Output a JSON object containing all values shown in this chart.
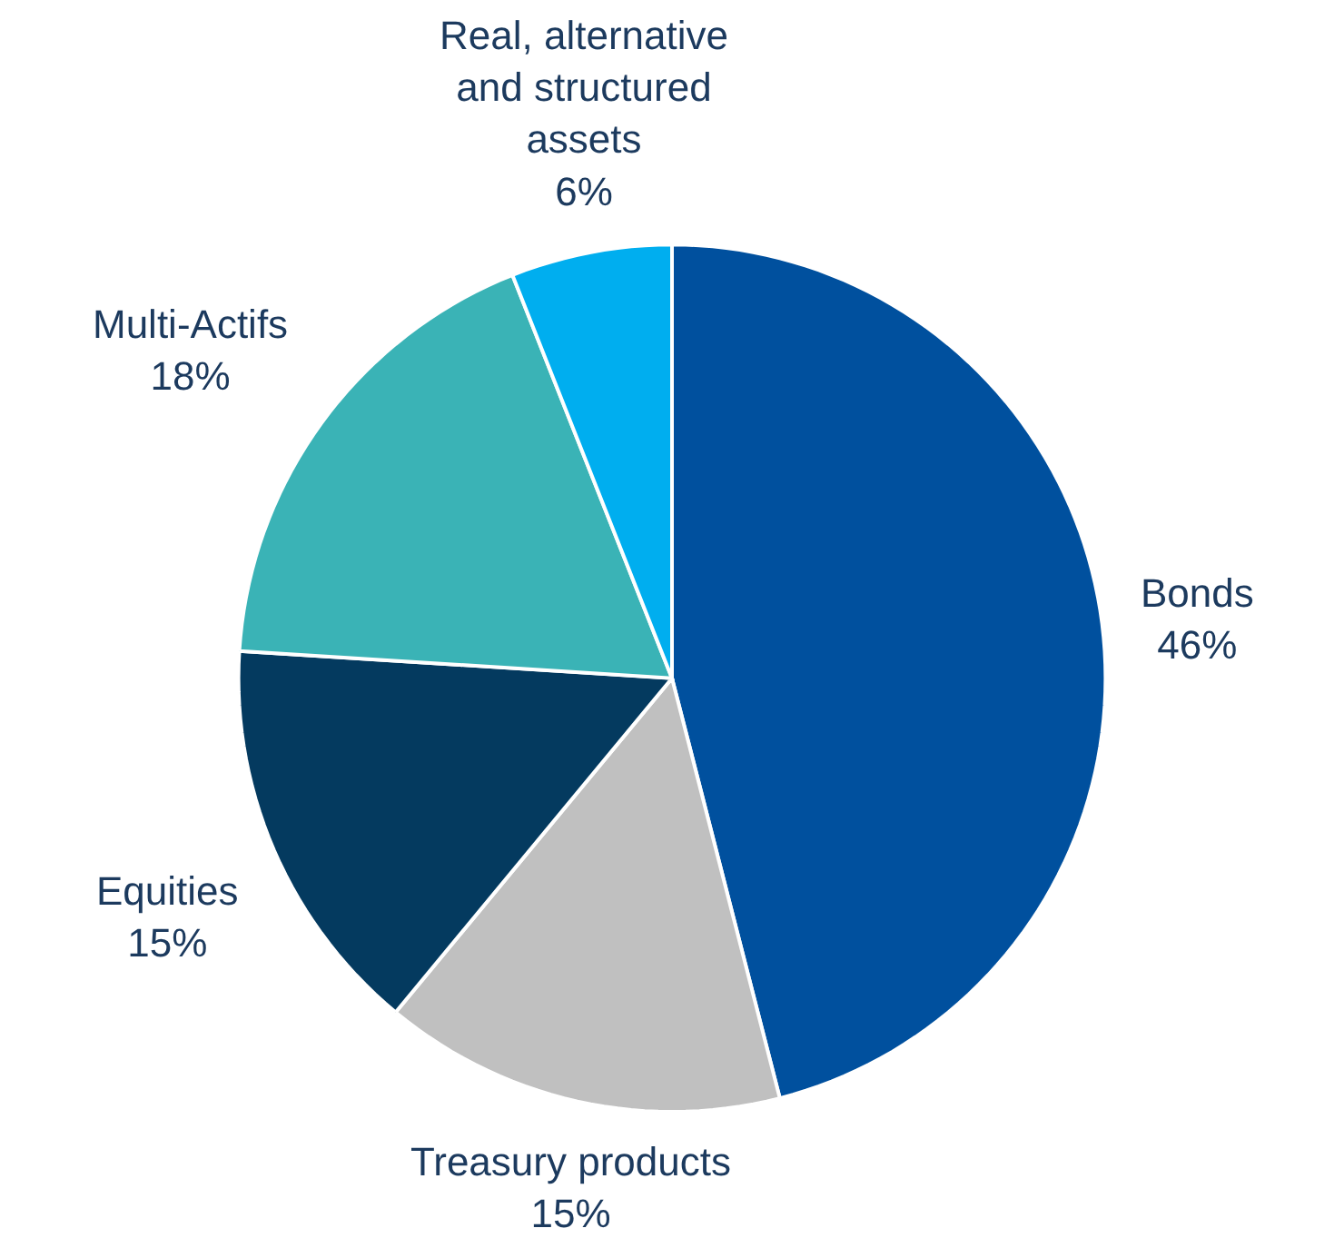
{
  "chart_data": {
    "type": "pie",
    "categories": [
      "Bonds",
      "Treasury products",
      "Equities",
      "Multi-Actifs",
      "Real, alternative and structured assets"
    ],
    "values": [
      46,
      15,
      15,
      18,
      6
    ],
    "value_labels": [
      "46%",
      "15%",
      "15%",
      "18%",
      "6%"
    ],
    "colors": [
      "#00509e",
      "#c0c0c0",
      "#043a5f",
      "#3ab3b6",
      "#00aeef"
    ],
    "legend": false
  }
}
